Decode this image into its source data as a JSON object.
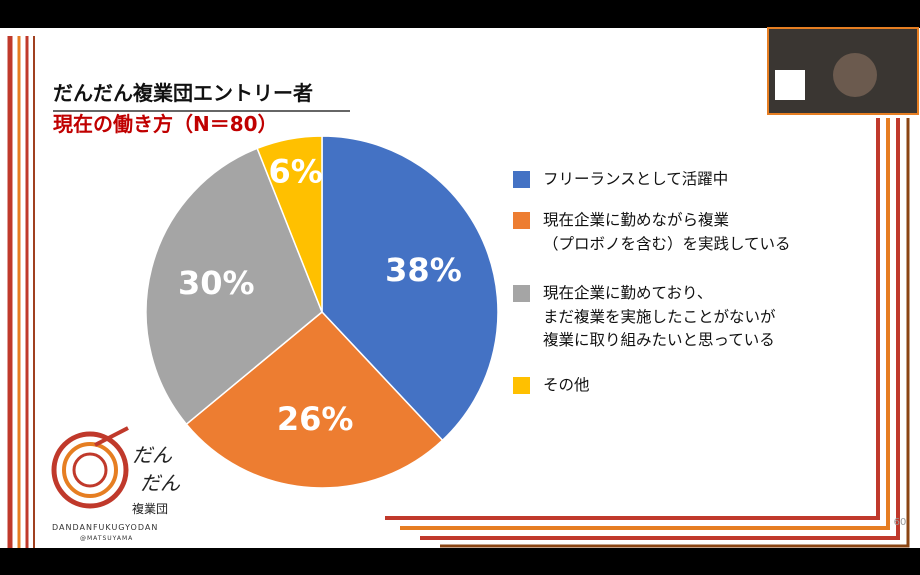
{
  "chart_data": {
    "type": "pie",
    "title": "だんだん複業団エントリー者",
    "subtitle": "現在の働き方（N＝80）",
    "categories": [
      "フリーランスとして活躍中",
      "現在企業に勤めながら複業\n（プロボノを含む）を実践している",
      "現在企業に勤めており、\nまだ複業を実施したことがないが\n複業に取り組みたいと思っている",
      "その他"
    ],
    "values": [
      38,
      26,
      30,
      6
    ],
    "value_labels": [
      "38%",
      "26%",
      "30%",
      "6%"
    ],
    "colors": [
      "#4472c4",
      "#ed7d31",
      "#a5a5a5",
      "#ffc000"
    ]
  },
  "logo": {
    "line1": "だん",
    "line2": "だん",
    "name": "複業団",
    "romaji": "DANDANFUKUGYODAN",
    "place": "@MATSUYAMA"
  },
  "page_number": "60"
}
